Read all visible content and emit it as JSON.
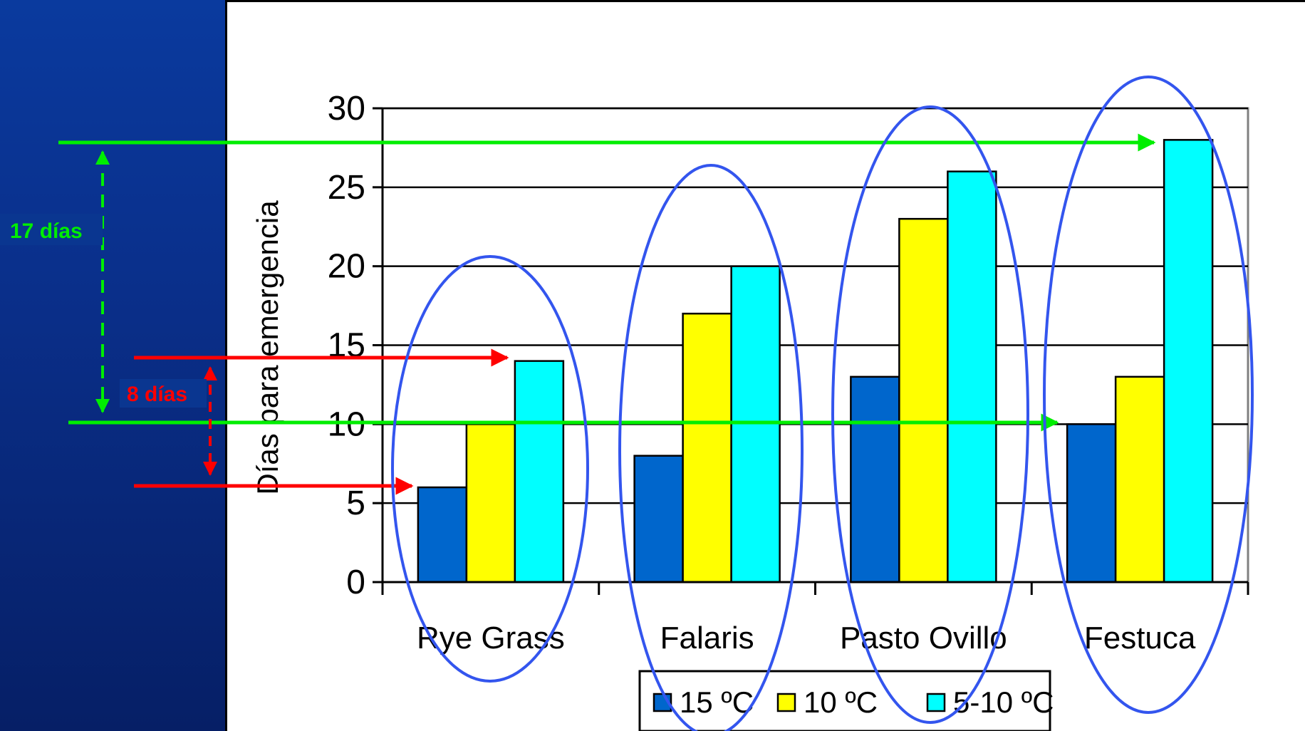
{
  "chart_data": {
    "type": "bar",
    "categories": [
      "Rye Grass",
      "Falaris",
      "Pasto Ovillo",
      "Festuca"
    ],
    "series": [
      {
        "name": "15 ºC",
        "color": "#0066cc",
        "values": [
          6,
          8,
          13,
          10
        ]
      },
      {
        "name": "10 ºC",
        "color": "#ffff00",
        "values": [
          10,
          17,
          23,
          13
        ]
      },
      {
        "name": "5-10 ºC",
        "color": "#00ffff",
        "values": [
          14,
          20,
          26,
          28
        ]
      }
    ],
    "ylabel": "Días para emergencia",
    "ylim": [
      0,
      30
    ],
    "yticks": [
      0,
      5,
      10,
      15,
      20,
      25,
      30
    ],
    "grid": true,
    "legend_position": "bottom"
  },
  "annotations": {
    "green_label": "17 días",
    "red_label": "8 días",
    "green_color": "#00ee00",
    "red_color": "#ff0000",
    "ellipse_color": "#3355ee"
  },
  "colors": {
    "background": "#0a2f8a",
    "panel": "#ffffff"
  }
}
